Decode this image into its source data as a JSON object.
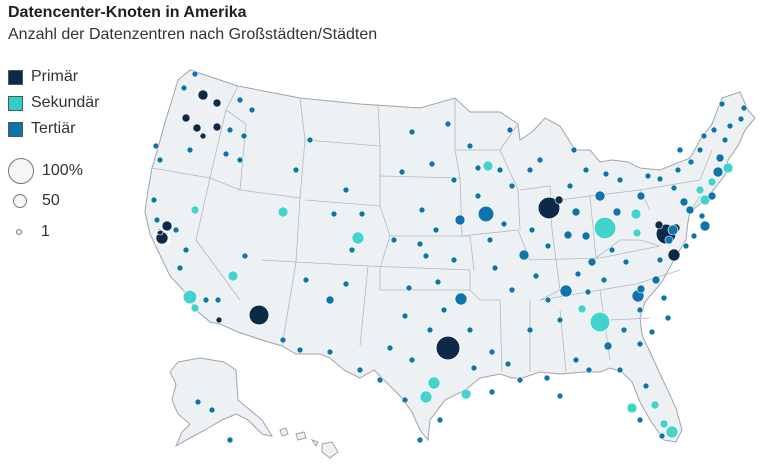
{
  "title": "Datencenter-Knoten in Amerika",
  "subtitle": "Anzahl der Datenzentren nach Großstädten/Städten",
  "colors": {
    "primary": "#0b2a4a",
    "secondary": "#2fd0c8",
    "tertiary": "#0d74ad",
    "land": "#eef1f4",
    "border": "#9ea4ab"
  },
  "legend": {
    "categories": [
      {
        "label": "Primär",
        "color": "#0b2a4a"
      },
      {
        "label": "Sekundär",
        "color": "#2fd0c8"
      },
      {
        "label": "Tertiär",
        "color": "#0d74ad"
      }
    ],
    "sizes": [
      {
        "label": "100%"
      },
      {
        "label": "50"
      },
      {
        "label": "1"
      }
    ]
  }
}
